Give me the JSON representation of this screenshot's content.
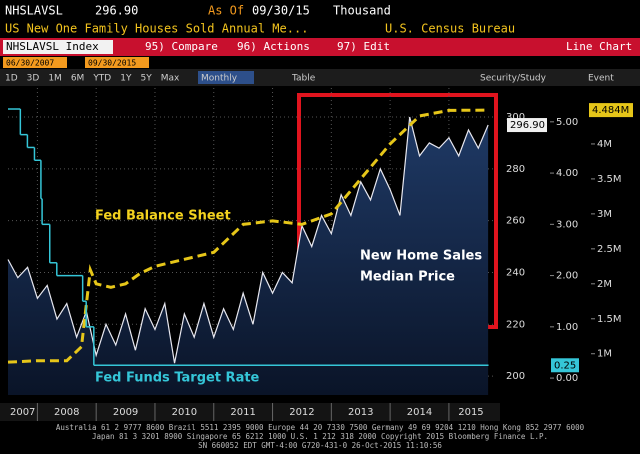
{
  "header": {
    "ticker": "NHSLAVSL",
    "price": "296.90",
    "as_of": "As Of",
    "date": "09/30/15",
    "unit": "Thousand",
    "description": "US New One Family Houses Sold Annual Me...",
    "source": "U.S. Census Bureau"
  },
  "toolbar": {
    "security": "NHSLAVSL Index",
    "actions": [
      "95) Compare",
      "96) Actions",
      "97) Edit"
    ],
    "view": "Line Chart",
    "start_date": "06/30/2007",
    "end_date": "09/30/2015",
    "ranges": [
      "1D",
      "3D",
      "1M",
      "6M",
      "YTD",
      "1Y",
      "5Y",
      "Max"
    ],
    "period": "Monthly",
    "table": "Table",
    "study": "Security/Study",
    "event": "Event"
  },
  "chart_data": {
    "type": "line",
    "grid": true,
    "annotations": [
      "Fed Balance Sheet",
      "New Home Sales",
      "Median Price",
      "Fed Funds Target Rate"
    ],
    "xlim": [
      2007.5,
      2015.75
    ],
    "xticks": [
      2007,
      2008,
      2009,
      2010,
      2011,
      2012,
      2013,
      2014,
      2015
    ],
    "ylim": [
      192.7,
      311.2
    ],
    "yticks": [
      200,
      220,
      240,
      260,
      280,
      300
    ],
    "y2lim": [
      -0.33,
      5.66
    ],
    "y2ticks": [
      {
        "value": 0,
        "label": "0.00"
      },
      {
        "value": 1,
        "label": "1.00"
      },
      {
        "value": 2,
        "label": "2.00"
      },
      {
        "value": 3,
        "label": "3.00"
      },
      {
        "value": 4,
        "label": "4.00"
      },
      {
        "value": 5,
        "label": "5.00"
      }
    ],
    "y3lim": [
      0.41,
      4.8
    ],
    "y3ticks": [
      {
        "value": 1,
        "label": "1M"
      },
      {
        "value": 1.5,
        "label": "1.5M"
      },
      {
        "value": 2,
        "label": "2M"
      },
      {
        "value": 2.5,
        "label": "2.5M"
      },
      {
        "value": 3,
        "label": "3M"
      },
      {
        "value": 3.5,
        "label": "3.5M"
      },
      {
        "value": 4,
        "label": "4M"
      },
      {
        "value": 4.5,
        "label": "4.5M"
      }
    ],
    "series": [
      {
        "color": "#e8e8f0",
        "fill": "#16284a",
        "axis": "y",
        "style": "area",
        "last_label": "296.90",
        "x": [
          2007.5,
          2007.667,
          2007.833,
          2008.0,
          2008.167,
          2008.333,
          2008.5,
          2008.667,
          2008.833,
          2009.0,
          2009.167,
          2009.333,
          2009.5,
          2009.667,
          2009.833,
          2010.0,
          2010.167,
          2010.333,
          2010.5,
          2010.667,
          2010.833,
          2011.0,
          2011.167,
          2011.333,
          2011.5,
          2011.667,
          2011.833,
          2012.0,
          2012.167,
          2012.333,
          2012.5,
          2012.667,
          2012.833,
          2013.0,
          2013.167,
          2013.333,
          2013.5,
          2013.667,
          2013.833,
          2014.0,
          2014.167,
          2014.333,
          2014.5,
          2014.667,
          2014.833,
          2015.0,
          2015.167,
          2015.333,
          2015.5,
          2015.667
        ],
        "values": [
          245,
          238,
          242,
          230,
          235,
          222,
          228,
          215,
          225,
          208,
          220,
          212,
          224,
          210,
          226,
          218,
          228,
          205,
          224,
          215,
          228,
          215,
          226,
          218,
          232,
          220,
          240,
          232,
          240,
          236,
          258,
          250,
          262,
          255,
          270,
          262,
          275,
          268,
          280,
          272,
          262,
          300,
          285,
          290,
          288,
          292,
          285,
          295,
          288,
          296.9
        ]
      },
      {
        "color": "#e6c619",
        "axis": "y3",
        "style": "dashed",
        "last_label": "4.484M",
        "x": [
          2007.5,
          2008.0,
          2008.5,
          2008.75,
          2008.9,
          2009.0,
          2009.25,
          2009.5,
          2009.75,
          2010.0,
          2010.5,
          2011.0,
          2011.5,
          2012.0,
          2012.5,
          2013.0,
          2013.5,
          2014.0,
          2014.5,
          2015.0,
          2015.667
        ],
        "values": [
          0.88,
          0.9,
          0.9,
          1.1,
          2.2,
          2.0,
          1.95,
          2.0,
          2.15,
          2.25,
          2.35,
          2.45,
          2.85,
          2.9,
          2.85,
          3.0,
          3.5,
          4.0,
          4.4,
          4.48,
          4.484
        ]
      },
      {
        "color": "#35c6d8",
        "axis": "y2",
        "style": "step",
        "last_label": "0.25",
        "x": [
          2007.5,
          2007.71,
          2007.83,
          2007.95,
          2008.06,
          2008.08,
          2008.21,
          2008.33,
          2008.77,
          2008.83,
          2008.96,
          2015.667
        ],
        "values": [
          5.25,
          4.75,
          4.5,
          4.25,
          3.5,
          3.0,
          2.25,
          2.0,
          1.5,
          1.0,
          0.25,
          0.25
        ]
      }
    ]
  },
  "footer": {
    "lines": [
      "Australia 61 2 9777 8600 Brazil 5511 2395 9000 Europe 44 20 7330 7500 Germany 49 69 9204 1210 Hong Kong 852 2977 6000",
      "Japan 81 3 3201 8900       Singapore 65 6212 1000       U.S. 1 212 318 2000       Copyright 2015 Bloomberg Finance L.P.",
      "SN 660052 EDT  GMT-4:00 G720-431-0 26-Oct-2015 11:10:56"
    ]
  }
}
